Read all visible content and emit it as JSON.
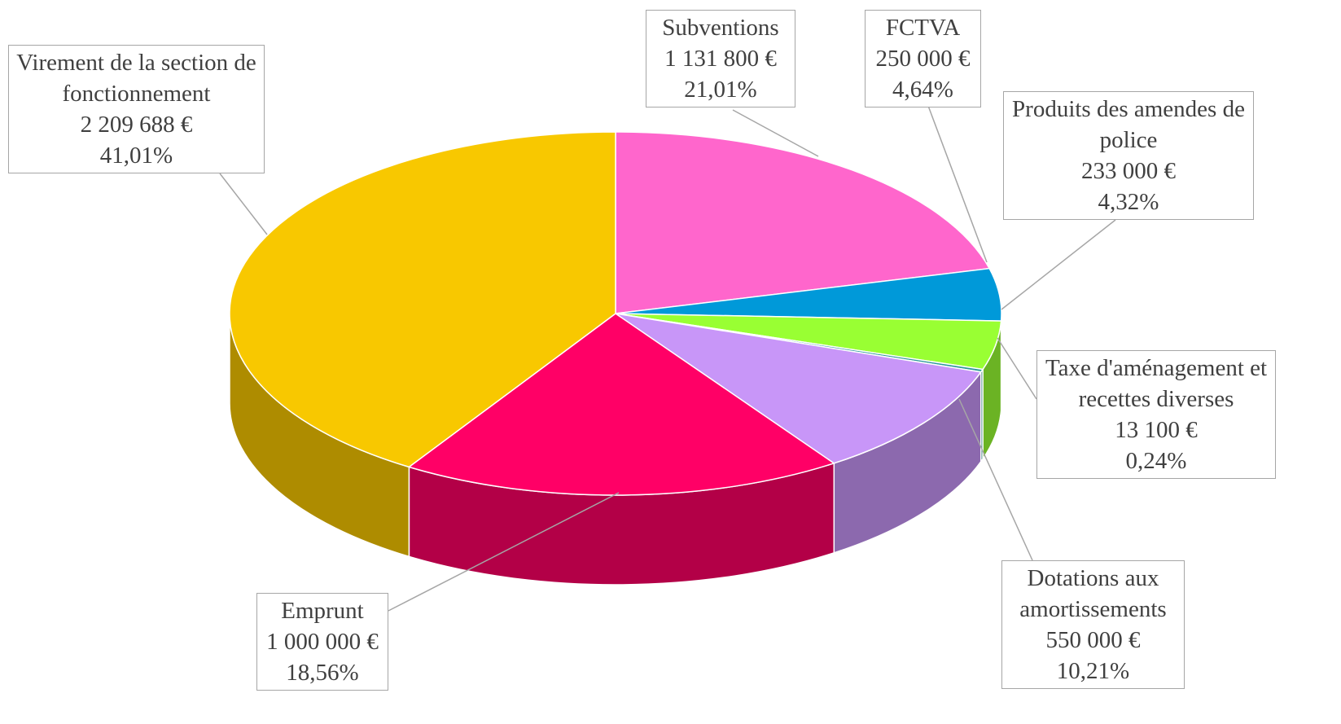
{
  "chart_data": {
    "type": "pie3d",
    "categories": [
      "Subventions",
      "FCTVA",
      "Produits des amendes de police",
      "Taxe d'aménagement et recettes diverses",
      "Dotations aux amortissements",
      "Emprunt",
      "Virement de la section de fonctionnement"
    ],
    "values": [
      1131800,
      250000,
      233000,
      13100,
      550000,
      1000000,
      2209688
    ],
    "value_labels": [
      "1 131 800 €",
      "250 000 €",
      "233 000 €",
      "13 100 €",
      "550 000 €",
      "1 000 000 €",
      "2 209 688 €"
    ],
    "percentages": [
      21.01,
      4.64,
      4.32,
      0.24,
      10.21,
      18.56,
      41.01
    ],
    "percentage_labels": [
      "21,01%",
      "4,64%",
      "4,32%",
      "0,24%",
      "10,21%",
      "18,56%",
      "41,01%"
    ],
    "colors": [
      "#ff66cc",
      "#0099d9",
      "#99ff33",
      "#2e9a9a",
      "#c896f8",
      "#ff0066",
      "#f8c800"
    ]
  }
}
